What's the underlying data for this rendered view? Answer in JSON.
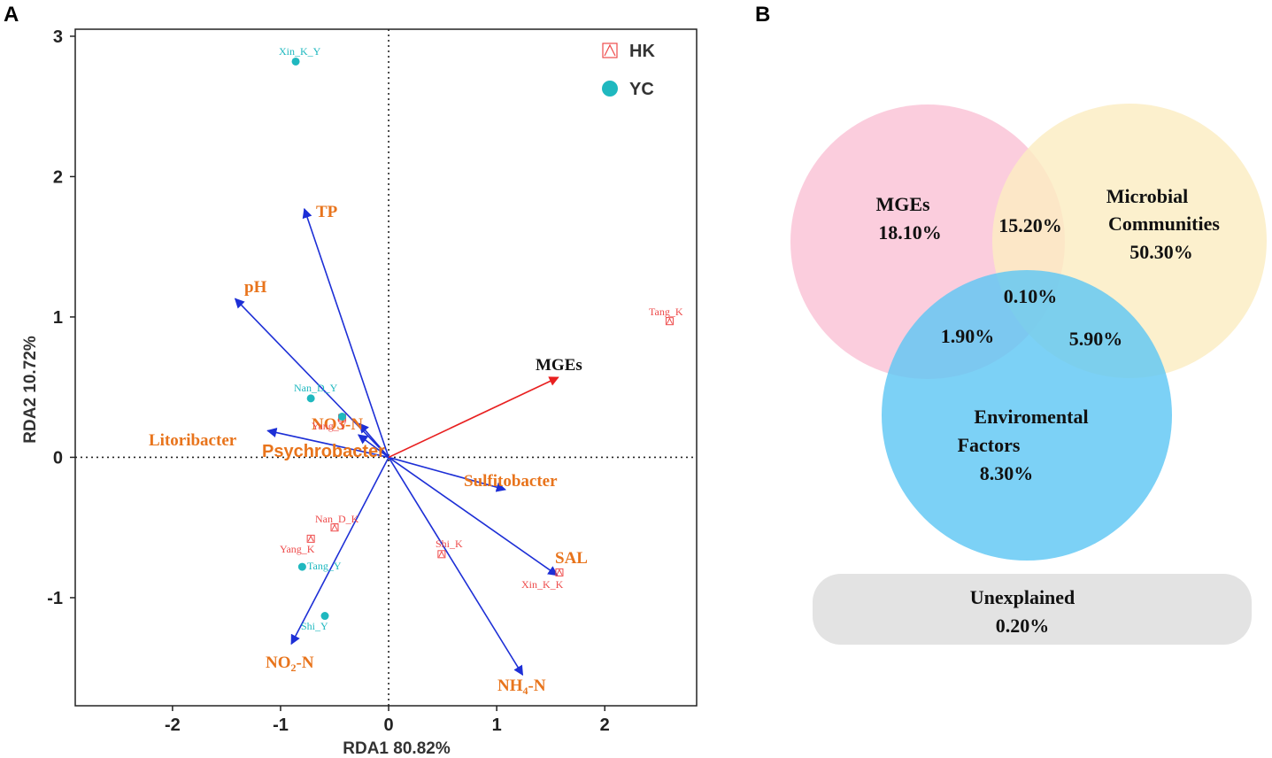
{
  "panels": {
    "left": "A",
    "right": "B"
  },
  "chart_data": [
    {
      "type": "scatter",
      "title": "",
      "xlabel": "RDA1 80.82%",
      "ylabel": "RDA2 10.72%",
      "xlim": [
        -2.9,
        2.85
      ],
      "ylim": [
        -1.77,
        3.05
      ],
      "xticks": [
        -2,
        -1,
        0,
        1,
        2
      ],
      "yticks": [
        -1,
        0,
        1,
        2,
        3
      ],
      "legend": {
        "position": "top-right",
        "entries": [
          {
            "name": "HK",
            "marker": "triangle-in-square",
            "color": "#ee4b4b"
          },
          {
            "name": "YC",
            "marker": "filled-circle",
            "color": "#1fb8bf"
          }
        ]
      },
      "series": [
        {
          "name": "HK",
          "color": "#ee4b4b",
          "points": [
            {
              "label": "Tang_K",
              "x": 2.6,
              "y": 0.97
            },
            {
              "label": "Nan_D_K",
              "x": -0.5,
              "y": -0.5
            },
            {
              "label": "Yang_K",
              "x": -0.72,
              "y": -0.58
            },
            {
              "label": "Shi_K",
              "x": 0.49,
              "y": -0.69
            },
            {
              "label": "Xin_K_K",
              "x": 1.58,
              "y": -0.82
            },
            {
              "label": "Yang_Y",
              "x": -0.43,
              "y": 0.28
            }
          ]
        },
        {
          "name": "YC",
          "color": "#1fb8bf",
          "points": [
            {
              "label": "Xin_K_Y",
              "x": -0.86,
              "y": 2.82
            },
            {
              "label": "Nan_D_Y",
              "x": -0.72,
              "y": 0.42
            },
            {
              "label": "Tang_Y",
              "x": -0.8,
              "y": -0.78
            },
            {
              "label": "Shi_Y",
              "x": -0.59,
              "y": -1.13
            },
            {
              "label": "",
              "x": -0.43,
              "y": 0.29
            }
          ]
        }
      ],
      "vectors": [
        {
          "label": "TP",
          "x": -0.78,
          "y": 1.77,
          "color": "#1d2fd6"
        },
        {
          "label": "pH",
          "x": -1.42,
          "y": 1.13,
          "color": "#1d2fd6"
        },
        {
          "label": "NO3-N",
          "x": -0.27,
          "y": 0.24,
          "color": "#1d2fd6"
        },
        {
          "label": "Litoribacter",
          "x": -1.12,
          "y": 0.19,
          "color": "#1d2fd6"
        },
        {
          "label": "Psychrobacter",
          "x": -0.28,
          "y": 0.16,
          "color": "#1d2fd6"
        },
        {
          "label": "Sulfitobacter",
          "x": 1.08,
          "y": -0.23,
          "color": "#1d2fd6"
        },
        {
          "label": "SAL",
          "x": 1.56,
          "y": -0.84,
          "color": "#1d2fd6"
        },
        {
          "label": "NO2-N",
          "x": -0.9,
          "y": -1.33,
          "color": "#1d2fd6"
        },
        {
          "label": "NH4-N",
          "x": 1.24,
          "y": -1.55,
          "color": "#1d2fd6"
        },
        {
          "label": "MGEs",
          "x": 1.57,
          "y": 0.57,
          "color": "#e82020"
        }
      ]
    },
    {
      "type": "venn",
      "sets": [
        {
          "name": "MGEs",
          "value": "18.10%",
          "color": "#fbc6d8"
        },
        {
          "name": "Microbial Communities",
          "value": "50.30%",
          "color": "#fbedc2"
        },
        {
          "name": "Enviromental Factors",
          "value": "8.30%",
          "color": "#5fc7f4"
        }
      ],
      "intersections": [
        {
          "sets": [
            "MGEs",
            "Microbial Communities"
          ],
          "value": "15.20%"
        },
        {
          "sets": [
            "MGEs",
            "Microbial Communities",
            "Enviromental Factors"
          ],
          "value": "0.10%"
        },
        {
          "sets": [
            "MGEs",
            "Enviromental Factors"
          ],
          "value": "1.90%"
        },
        {
          "sets": [
            "Microbial Communities",
            "Enviromental Factors"
          ],
          "value": "5.90%"
        }
      ],
      "unexplained": {
        "label": "Unexplained",
        "value": "0.20%"
      }
    }
  ],
  "venn_text": {
    "mges_title": "MGEs",
    "mges_value": "18.10%",
    "micro_line1": "Microbial",
    "micro_line2": "Communities",
    "micro_value": "50.30%",
    "env_line1": "Enviromental",
    "env_line2": "Factors",
    "env_value": "8.30%",
    "mges_micro": "15.20%",
    "all_three": "0.10%",
    "mges_env": "1.90%",
    "micro_env": "5.90%",
    "unexplained_label": "Unexplained",
    "unexplained_value": "0.20%"
  }
}
